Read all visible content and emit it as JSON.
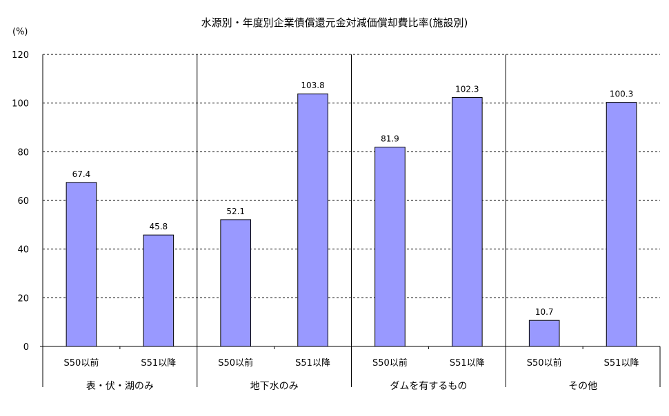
{
  "chart_data": {
    "type": "bar",
    "title": "水源別・年度別企業債償還元金対減価償却費比率(施設別)",
    "ylabel": "(%)",
    "ylim": [
      0,
      120
    ],
    "yticks": [
      0,
      20,
      40,
      60,
      80,
      100,
      120
    ],
    "grid": true,
    "groups": [
      {
        "label": "表・伏・湖のみ",
        "categories": [
          "S50以前",
          "S51以降"
        ],
        "values": [
          67.4,
          45.8
        ]
      },
      {
        "label": "地下水のみ",
        "categories": [
          "S50以前",
          "S51以降"
        ],
        "values": [
          52.1,
          103.8
        ]
      },
      {
        "label": "ダムを有するもの",
        "categories": [
          "S50以前",
          "S51以降"
        ],
        "values": [
          81.9,
          102.3
        ]
      },
      {
        "label": "その他",
        "categories": [
          "S50以前",
          "S51以降"
        ],
        "values": [
          10.7,
          100.3
        ]
      }
    ],
    "colors": {
      "bar": "#9999ff",
      "grid": "#000000"
    }
  }
}
